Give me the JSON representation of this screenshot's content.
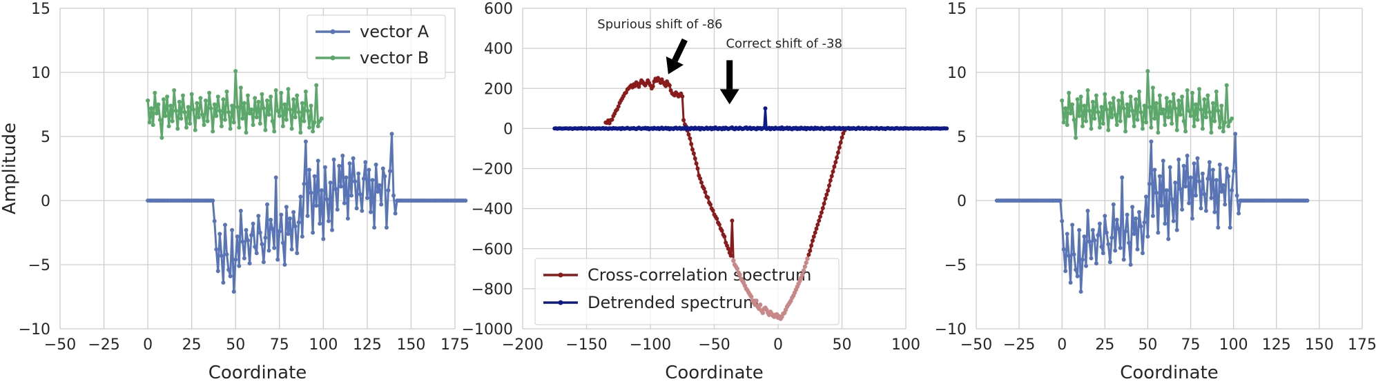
{
  "colors": {
    "vector_a": "#5975b6",
    "vector_b": "#5ba86a",
    "cross_corr": "#8b1a1a",
    "cross_corr_light": "#c98888",
    "detrended": "#0e1a8c",
    "grid": "#cccccc",
    "text": "#262626"
  },
  "chart_data": [
    {
      "type": "line",
      "panel": "left",
      "xlabel": "Coordinate",
      "ylabel": "Amplitude",
      "xlim": [
        -50,
        175
      ],
      "ylim": [
        -10,
        15
      ],
      "xticks": [
        -50,
        -25,
        0,
        25,
        50,
        75,
        100,
        125,
        150,
        175
      ],
      "yticks": [
        -10,
        -5,
        0,
        5,
        10,
        15
      ],
      "grid": true,
      "legend_position": "top-right",
      "series": [
        {
          "name": "vector A",
          "x_start": 0,
          "values": [
            0,
            0,
            0,
            0,
            0,
            0,
            0,
            0,
            0,
            0,
            0,
            0,
            0,
            0,
            0,
            0,
            0,
            0,
            0,
            0,
            0,
            0,
            0,
            0,
            0,
            0,
            0,
            0,
            0,
            0,
            0,
            0,
            0,
            0,
            0,
            0,
            0,
            0,
            -1.6,
            -3.8,
            -5.5,
            -2.6,
            -4.3,
            -6.4,
            -1.9,
            -4.2,
            -5.4,
            -5.9,
            -2.3,
            -7.1,
            -4.6,
            -2.8,
            -5.1,
            -0.8,
            -3.2,
            -4.5,
            -2.3,
            -3.1,
            -4.9,
            -2.7,
            -1.8,
            -3.6,
            -4.1,
            -1.2,
            -2.5,
            -3.4,
            -4.8,
            -2.9,
            -0.3,
            -3.9,
            -1.5,
            -2.2,
            -3.7,
            1.8,
            -4.6,
            -2.4,
            -1.1,
            -3.3,
            -5.0,
            -0.5,
            -2.6,
            -1.4,
            -3.8,
            -0.9,
            -2.0,
            -4.1,
            -1.7,
            0.3,
            -2.8,
            1.3,
            4.6,
            -1.2,
            2.4,
            0.6,
            -2.5,
            1.9,
            -0.4,
            3.1,
            -1.8,
            0.8,
            -3.0,
            2.6,
            0.1,
            -1.6,
            1.4,
            -2.3,
            3.2,
            0.9,
            -0.7,
            2.7,
            1.1,
            3.5,
            -0.2,
            1.8,
            -1.4,
            2.9,
            0.4,
            3.3,
            1.5,
            -0.6,
            2.1,
            0.5,
            -0.8,
            1.7,
            3.0,
            0.2,
            2.4,
            -0.9,
            1.6,
            -2.1,
            2.8,
            0.7,
            1.2,
            -0.3,
            2.5,
            1.9,
            -2.1,
            0.8,
            2.3,
            5.2,
            0.4,
            -1.0,
            0,
            0,
            0,
            0,
            0,
            0,
            0,
            0,
            0,
            0,
            0,
            0,
            0,
            0,
            0,
            0,
            0,
            0,
            0,
            0,
            0,
            0,
            0,
            0,
            0,
            0,
            0,
            0,
            0,
            0,
            0,
            0,
            0,
            0,
            0,
            0,
            0,
            0,
            0,
            0
          ]
        },
        {
          "name": "vector B",
          "x_start": 0,
          "values": [
            7.8,
            6.1,
            7.2,
            5.9,
            8.4,
            6.8,
            7.5,
            6.3,
            4.9,
            7.9,
            6.6,
            8.1,
            5.8,
            7.4,
            6.2,
            8.6,
            7.0,
            5.6,
            7.7,
            6.4,
            8.2,
            6.9,
            5.7,
            7.3,
            6.0,
            8.3,
            7.1,
            5.5,
            7.6,
            6.5,
            8.0,
            6.7,
            5.9,
            7.8,
            6.2,
            8.4,
            7.2,
            5.4,
            7.5,
            6.6,
            8.1,
            7.0,
            5.8,
            7.9,
            6.3,
            8.5,
            6.9,
            5.6,
            7.4,
            6.1,
            10.1,
            7.3,
            5.7,
            8.8,
            6.4,
            7.6,
            5.3,
            8.2,
            6.8,
            7.1,
            5.9,
            8.0,
            6.5,
            7.7,
            6.0,
            8.3,
            7.2,
            5.5,
            7.8,
            6.7,
            8.1,
            6.2,
            5.4,
            8.6,
            7.0,
            6.6,
            8.4,
            5.8,
            7.5,
            6.3,
            8.7,
            7.1,
            5.6,
            7.9,
            6.5,
            8.2,
            6.9,
            5.3,
            7.6,
            6.2,
            8.5,
            7.0,
            5.7,
            7.4,
            5.4,
            6.1,
            9.0,
            5.8,
            6.2,
            6.4
          ]
        }
      ]
    },
    {
      "type": "line",
      "panel": "middle",
      "xlabel": "Coordinate",
      "ylabel": "",
      "xlim": [
        -200,
        100
      ],
      "ylim": [
        -1000,
        600
      ],
      "xticks": [
        -200,
        -150,
        -100,
        -50,
        0,
        50,
        100
      ],
      "yticks": [
        -1000,
        -800,
        -600,
        -400,
        -200,
        0,
        200,
        400,
        600
      ],
      "grid": true,
      "legend_position": "lower-left",
      "series": [
        {
          "name": "Cross-correlation spectrum",
          "x_start": -135,
          "values": [
            30,
            28,
            40,
            26,
            42,
            44,
            62,
            74,
            88,
            95,
            110,
            128,
            140,
            150,
            162,
            175,
            180,
            195,
            200,
            208,
            215,
            205,
            220,
            212,
            230,
            218,
            208,
            226,
            240,
            232,
            222,
            215,
            226,
            240,
            228,
            215,
            200,
            210,
            235,
            248,
            238,
            252,
            240,
            228,
            245,
            230,
            220,
            212,
            235,
            222,
            215,
            190,
            175,
            170,
            165,
            180,
            172,
            160,
            168,
            174,
            160,
            42,
            20,
            10,
            -10,
            -30,
            -50,
            -78,
            -105,
            -125,
            -150,
            -175,
            -200,
            -235,
            -250,
            -270,
            -290,
            -300,
            -318,
            -340,
            -345,
            -370,
            -380,
            -400,
            -410,
            -430,
            -440,
            -450,
            -470,
            -480,
            -500,
            -510,
            -530,
            -540,
            -570,
            -585,
            -600,
            -620,
            -635,
            -460,
            -660,
            -680,
            -690,
            -700,
            -720,
            -730,
            -750,
            -760,
            -770,
            -785,
            -800,
            -808,
            -820,
            -830,
            -840,
            -860,
            -870,
            -880,
            -860,
            -890,
            -900,
            -880,
            -910,
            -920,
            -900,
            -895,
            -905,
            -920,
            -930,
            -915,
            -925,
            -935,
            -940,
            -930,
            -928,
            -945,
            -938,
            -950,
            -940,
            -925,
            -920,
            -905,
            -890,
            -880,
            -870,
            -860,
            -845,
            -835,
            -820,
            -805,
            -790,
            -775,
            -760,
            -745,
            -730,
            -710,
            -690,
            -670,
            -650,
            -630,
            -610,
            -585,
            -560,
            -540,
            -520,
            -500,
            -480,
            -460,
            -440,
            -420,
            -398,
            -375,
            -350,
            -330,
            -310,
            -285,
            -260,
            -238,
            -215,
            -190,
            -168,
            -145,
            -120,
            -95,
            -70,
            -45,
            -25,
            -10,
            0
          ]
        },
        {
          "name": "Detrended spectrum",
          "x_start": -175,
          "values": [
            0,
            1,
            -1,
            0,
            1,
            0,
            -1,
            0,
            0,
            1,
            0,
            -1,
            1,
            0,
            -2,
            0,
            1,
            0,
            -1,
            1,
            0,
            2,
            -1,
            0,
            1,
            -1,
            0,
            2,
            0,
            -1,
            1,
            0,
            -2,
            1,
            0,
            1,
            -1,
            0,
            2,
            -1,
            1,
            0,
            -2,
            1,
            0,
            -1,
            2,
            0,
            1,
            -1,
            0,
            1,
            -3,
            2,
            0,
            -1,
            1,
            3,
            0,
            -2,
            1,
            0,
            2,
            -1,
            -3,
            1,
            4,
            0,
            -2,
            1,
            0,
            3,
            -1,
            2,
            -4,
            0,
            1,
            -2,
            3,
            0,
            -1,
            2,
            -3,
            1,
            4,
            -2,
            0,
            3,
            -1,
            2,
            -4,
            1,
            0,
            -3,
            2,
            4,
            -1,
            0,
            3,
            -2,
            1,
            -1,
            5,
            -3,
            2,
            0,
            -4,
            3,
            1,
            -2,
            4,
            -1,
            0,
            3,
            -5,
            2,
            1,
            -3,
            0,
            4,
            -2,
            1,
            3,
            -4,
            2,
            -1,
            5,
            0,
            -3,
            2,
            1,
            -4,
            3,
            -2,
            4,
            1,
            -3,
            0,
            2,
            5,
            -1,
            -4,
            3,
            0,
            -2,
            4,
            1,
            -3,
            -1,
            3,
            5,
            -2,
            0,
            4,
            -3,
            1,
            2,
            -1,
            -4,
            3,
            0,
            2,
            -3,
            1,
            4,
            100,
            -2,
            0,
            3,
            -4,
            2,
            1,
            -3,
            4,
            0,
            -1,
            2,
            -2,
            5,
            -3,
            1,
            0,
            4,
            -2,
            3,
            -1,
            -4,
            2,
            0,
            3,
            -3,
            1,
            -2,
            4,
            0,
            -1,
            3,
            -4,
            2,
            1,
            -2,
            3,
            0,
            -3,
            4,
            -1,
            2,
            0,
            -2,
            3,
            1,
            -4,
            0,
            2,
            -1,
            3,
            -3,
            1,
            0,
            4,
            -2,
            1,
            -1,
            3,
            -3,
            0,
            2,
            -1,
            1,
            0,
            3,
            -2,
            1,
            -1,
            2,
            0,
            -3,
            1,
            4,
            -1,
            0,
            2,
            -2,
            1,
            3,
            -1,
            0,
            -2,
            2,
            1,
            0,
            -1,
            3,
            0,
            -2,
            1,
            2,
            -1,
            0,
            -3,
            1,
            2,
            0,
            -1,
            1,
            0,
            -2,
            1,
            2,
            0,
            -1,
            1,
            0,
            -1,
            2,
            0,
            1,
            -1,
            0,
            1,
            0,
            -1,
            1,
            0,
            0,
            1,
            -1,
            0,
            1,
            0,
            -1,
            0,
            1,
            0,
            0,
            -1,
            1,
            0,
            0,
            1,
            0,
            0,
            -1,
            0,
            0,
            1,
            0,
            0
          ]
        }
      ],
      "annotations": [
        {
          "text": "Spurious shift of -86",
          "x": -86,
          "y": 250
        },
        {
          "text": "Correct shift of -38",
          "x": -38,
          "y": 100
        }
      ]
    },
    {
      "type": "line",
      "panel": "right",
      "xlabel": "Coordinate",
      "ylabel": "",
      "xlim": [
        -50,
        175
      ],
      "ylim": [
        -10,
        15
      ],
      "xticks": [
        -50,
        -25,
        0,
        25,
        50,
        75,
        100,
        125,
        150,
        175
      ],
      "yticks": [
        -10,
        -5,
        0,
        5,
        10,
        15
      ],
      "grid": true,
      "series_shift": -38
    }
  ]
}
